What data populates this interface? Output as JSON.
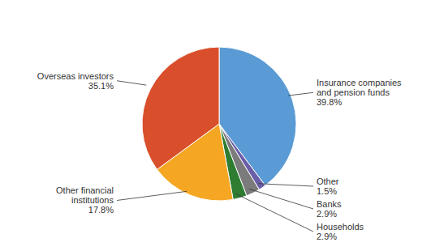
{
  "chart_data": {
    "type": "pie",
    "categories": [
      "Insurance companies\nand pension funds",
      "Other",
      "Banks",
      "Households",
      "Other financial\ninstitutions",
      "Overseas investors"
    ],
    "values": [
      39.8,
      1.5,
      2.9,
      2.9,
      17.8,
      35.1
    ],
    "value_labels": [
      "39.8%",
      "1.5%",
      "2.9%",
      "2.9%",
      "17.8%",
      "35.1%"
    ],
    "colors": [
      "#5B9BD5",
      "#6B5EA8",
      "#7B7B7B",
      "#2E7D32",
      "#F5A623",
      "#D94F2B"
    ],
    "data_labels": true
  }
}
